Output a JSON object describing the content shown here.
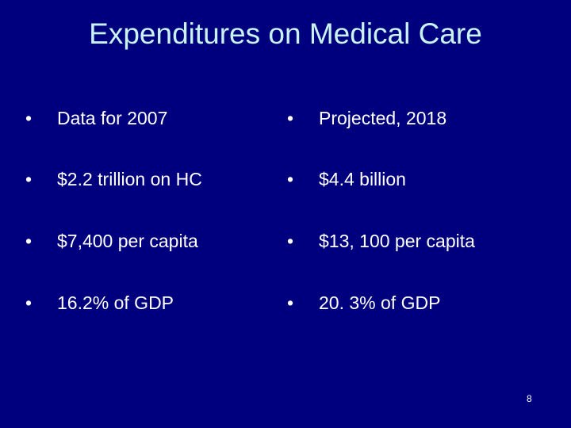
{
  "slide": {
    "title": "Expenditures on Medical Care",
    "bullet_glyph": "•",
    "left_column": [
      "Data for 2007",
      "$2.2 trillion on HC",
      "$7,400 per capita",
      "16.2% of GDP"
    ],
    "right_column": [
      "Projected, 2018",
      "$4.4 billion",
      "$13, 100 per capita",
      "20. 3% of GDP"
    ],
    "page_number": "8"
  },
  "colors": {
    "background": "#00007f",
    "title": "#c9f3f1",
    "body_text": "#ffffff"
  }
}
